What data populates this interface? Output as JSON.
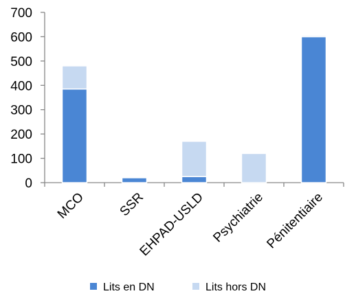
{
  "chart_data": {
    "type": "bar",
    "stacked": true,
    "categories": [
      "MCO",
      "SSR",
      "EHPAD-USLD",
      "Psychiatrie",
      "Pénitentiaire"
    ],
    "series": [
      {
        "name": "Lits en DN",
        "color": "#4a86d4",
        "values": [
          385,
          20,
          25,
          0,
          600
        ]
      },
      {
        "name": "Lits hors DN",
        "color": "#c6d9f1",
        "values": [
          95,
          0,
          145,
          120,
          5
        ]
      }
    ],
    "y_ticks": [
      "0",
      "100",
      "200",
      "300",
      "400",
      "500",
      "600",
      "700"
    ],
    "ylim": [
      0,
      700
    ],
    "grid": false,
    "legend_position": "bottom"
  }
}
